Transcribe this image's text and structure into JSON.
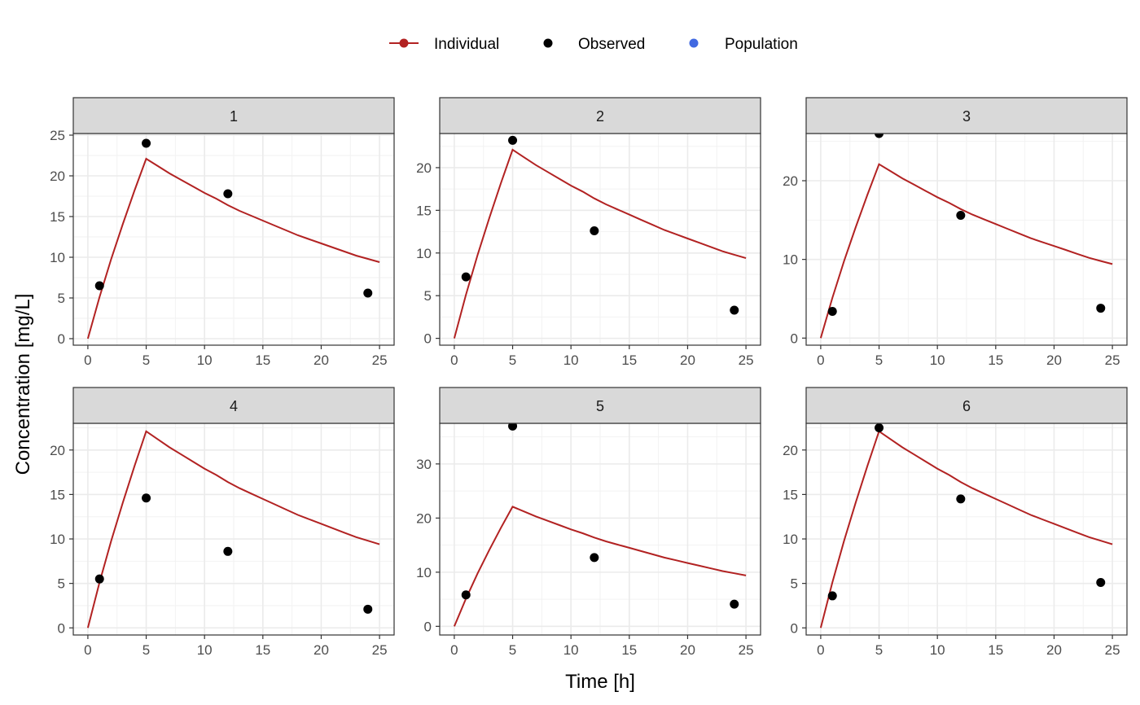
{
  "chart_data": {
    "type": "line",
    "xlabel": "Time [h]",
    "ylabel": "Concentration [mg/L]",
    "xlim": [
      0,
      25
    ],
    "x_ticks": [
      0,
      5,
      10,
      15,
      20,
      25
    ],
    "grid": true,
    "legend": {
      "placement": "top",
      "entries": [
        {
          "name": "Individual",
          "color": "#B22222",
          "style": "line-point"
        },
        {
          "name": "Observed",
          "color": "#000000",
          "style": "point"
        },
        {
          "name": "Population",
          "color": "#4169E1",
          "style": "point"
        }
      ]
    },
    "individual_curve": {
      "series": "Individual",
      "x": [
        0,
        1,
        2,
        3,
        4,
        5,
        6,
        7,
        8,
        9,
        10,
        11,
        12,
        13,
        14,
        15,
        16,
        17,
        18,
        19,
        20,
        21,
        22,
        23,
        24,
        25
      ],
      "y": [
        0,
        5.1,
        9.8,
        14.1,
        18.2,
        22.1,
        21.2,
        20.3,
        19.5,
        18.7,
        17.9,
        17.2,
        16.4,
        15.7,
        15.1,
        14.5,
        13.9,
        13.3,
        12.7,
        12.2,
        11.7,
        11.2,
        10.7,
        10.2,
        9.8,
        9.4
      ]
    },
    "panels": [
      {
        "label": "1",
        "ylim": [
          -0.8,
          25.2
        ],
        "y_ticks": [
          0,
          5,
          10,
          15,
          20,
          25
        ],
        "individual_scale": 0.868,
        "observed": [
          [
            1,
            6.5
          ],
          [
            5,
            24.0
          ],
          [
            12,
            17.8
          ],
          [
            24,
            5.6
          ]
        ]
      },
      {
        "label": "2",
        "ylim": [
          -0.8,
          24.0
        ],
        "y_ticks": [
          0,
          5,
          10,
          15,
          20
        ],
        "individual_scale": 0.868,
        "observed": [
          [
            1,
            7.2
          ],
          [
            5,
            23.2
          ],
          [
            12,
            12.6
          ],
          [
            24,
            3.3
          ]
        ]
      },
      {
        "label": "3",
        "ylim": [
          -0.9,
          26.0
        ],
        "y_ticks": [
          0,
          10,
          20
        ],
        "individual_scale": 0.868,
        "observed": [
          [
            1,
            3.4
          ],
          [
            5,
            26.0
          ],
          [
            12,
            15.6
          ],
          [
            24,
            3.8
          ]
        ]
      },
      {
        "label": "4",
        "ylim": [
          -0.8,
          23.0
        ],
        "y_ticks": [
          0,
          5,
          10,
          15,
          20
        ],
        "individual_scale": 0.868,
        "observed": [
          [
            1,
            5.5
          ],
          [
            5,
            14.6
          ],
          [
            12,
            8.6
          ],
          [
            24,
            2.1
          ]
        ]
      },
      {
        "label": "5",
        "ylim": [
          -1.6,
          37.5
        ],
        "y_ticks": [
          0,
          10,
          20,
          30
        ],
        "individual_scale": 0.868,
        "observed": [
          [
            1,
            5.8
          ],
          [
            5,
            37.0
          ],
          [
            12,
            12.7
          ],
          [
            24,
            4.1
          ]
        ]
      },
      {
        "label": "6",
        "ylim": [
          -0.8,
          23.0
        ],
        "y_ticks": [
          0,
          5,
          10,
          15,
          20
        ],
        "individual_scale": 0.868,
        "observed": [
          [
            1,
            3.6
          ],
          [
            5,
            22.5
          ],
          [
            12,
            14.5
          ],
          [
            24,
            5.1
          ]
        ]
      }
    ]
  }
}
